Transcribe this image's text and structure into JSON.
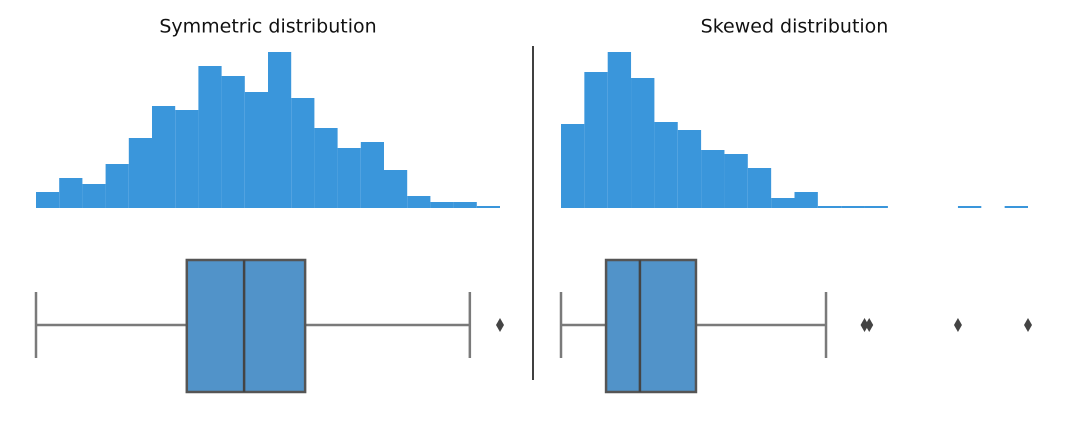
{
  "chart_data": [
    {
      "type": "histogram",
      "title": "Symmetric distribution",
      "color": "#3a96db",
      "box_color": "#5193c9",
      "bins": [
        0,
        1,
        2,
        3,
        4,
        5,
        6,
        7,
        8,
        9,
        10,
        11,
        12,
        13,
        14,
        15,
        16,
        17,
        18,
        19,
        20
      ],
      "values": [
        8,
        15,
        12,
        22,
        35,
        51,
        49,
        71,
        66,
        58,
        78,
        55,
        40,
        30,
        33,
        19,
        6,
        3,
        3,
        1
      ],
      "xlim": [
        0,
        20
      ],
      "ylim": [
        0,
        79
      ],
      "box": {
        "whislo": 0,
        "q1": 6.5,
        "med": 8.97,
        "q3": 11.6,
        "whishi": 18.7,
        "fliers": [
          20.0
        ]
      }
    },
    {
      "type": "histogram",
      "title": "Skewed distribution",
      "color": "#3a96db",
      "box_color": "#5193c9",
      "bins": [
        0,
        1,
        2,
        3,
        4,
        5,
        6,
        7,
        8,
        9,
        10,
        11,
        12,
        13,
        14,
        15,
        16,
        17,
        18,
        19,
        20
      ],
      "values": [
        42,
        68,
        78,
        65,
        43,
        39,
        29,
        27,
        20,
        5,
        8,
        1,
        1,
        1,
        0,
        0,
        0,
        1,
        0,
        1
      ],
      "xlim": [
        0,
        20
      ],
      "ylim": [
        0,
        79
      ],
      "box": {
        "whislo": 0,
        "q1": 1.93,
        "med": 3.38,
        "q3": 5.78,
        "whishi": 11.35,
        "fliers": [
          13.0,
          13.2,
          17.0,
          20.0
        ]
      }
    }
  ]
}
